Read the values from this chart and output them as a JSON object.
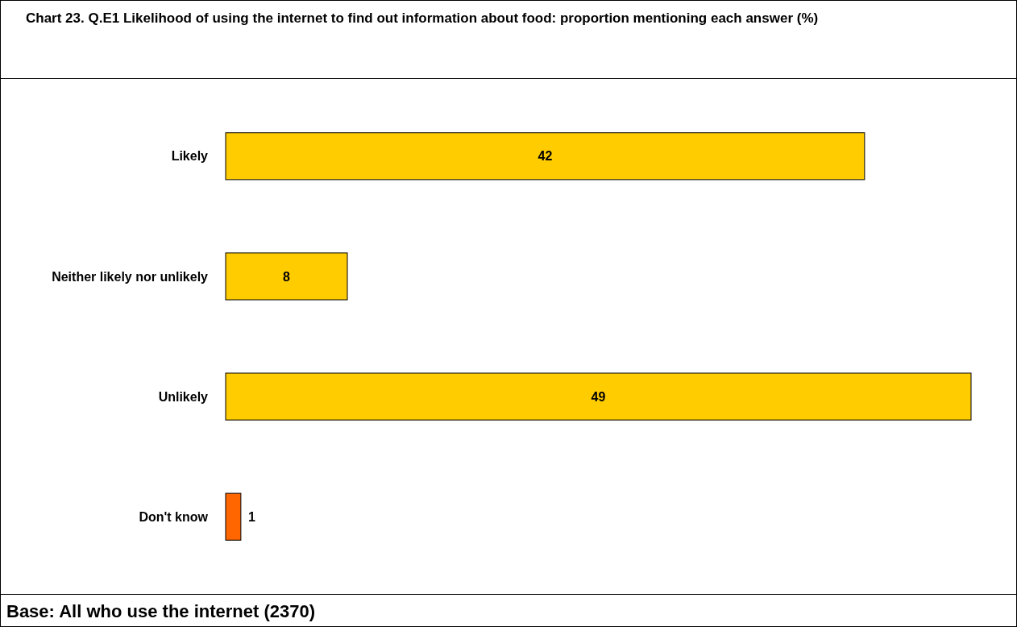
{
  "chart_data": {
    "type": "bar",
    "orientation": "horizontal",
    "title": "Chart 23. Q.E1 Likelihood of using the internet to find out information about food: proportion mentioning each answer (%)",
    "categories": [
      "Likely",
      "Neither likely nor unlikely",
      "Unlikely",
      "Don't know"
    ],
    "values": [
      42,
      8,
      49,
      1
    ],
    "colors": [
      "#ffcc00",
      "#ffcc00",
      "#ffcc00",
      "#ff6600"
    ],
    "data_labels": true,
    "annotations": [
      "Base: All who use the internet (2370)"
    ]
  }
}
